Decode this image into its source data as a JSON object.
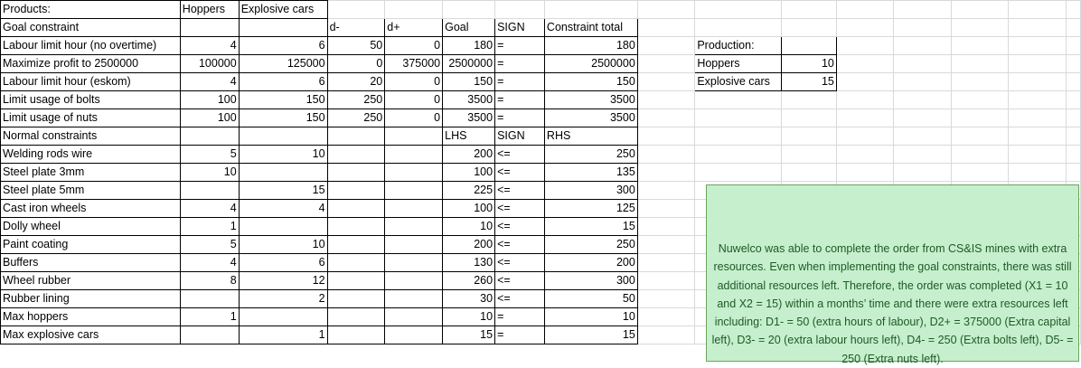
{
  "headers": {
    "products": "Products:",
    "hoppers": "Hoppers",
    "explosive_cars": "Explosive cars",
    "goal_constraint": "Goal constraint",
    "d_minus": "d-",
    "d_plus": "d+",
    "goal": "Goal",
    "sign": "SIGN",
    "constraint_total": "Constraint total",
    "normal_constraints": "Normal constraints",
    "lhs": "LHS",
    "sign2": "SIGN",
    "rhs": "RHS"
  },
  "goal_rows": [
    {
      "label": "Labour limit hour (no overtime)",
      "hoppers": "4",
      "cars": "6",
      "dminus": "50",
      "dplus": "0",
      "goal": "180",
      "sign": "=",
      "total": "180"
    },
    {
      "label": "Maximize profit to 2500000",
      "hoppers": "100000",
      "cars": "125000",
      "dminus": "0",
      "dplus": "375000",
      "goal": "2500000",
      "sign": "=",
      "total": "2500000"
    },
    {
      "label": "Labour limit hour (eskom)",
      "hoppers": "4",
      "cars": "6",
      "dminus": "20",
      "dplus": "0",
      "goal": "150",
      "sign": "=",
      "total": "150"
    },
    {
      "label": "Limit usage of bolts",
      "hoppers": "100",
      "cars": "150",
      "dminus": "250",
      "dplus": "0",
      "goal": "3500",
      "sign": "=",
      "total": "3500"
    },
    {
      "label": "Limit usage of nuts",
      "hoppers": "100",
      "cars": "150",
      "dminus": "250",
      "dplus": "0",
      "goal": "3500",
      "sign": "=",
      "total": "3500"
    }
  ],
  "normal_rows": [
    {
      "label": "Welding rods wire",
      "hoppers": "5",
      "cars": "10",
      "lhs": "200",
      "sign": "<=",
      "rhs": "250"
    },
    {
      "label": "Steel plate 3mm",
      "hoppers": "10",
      "cars": "",
      "lhs": "100",
      "sign": "<=",
      "rhs": "135"
    },
    {
      "label": "Steel plate 5mm",
      "hoppers": "",
      "cars": "15",
      "lhs": "225",
      "sign": "<=",
      "rhs": "300"
    },
    {
      "label": "Cast iron wheels",
      "hoppers": "4",
      "cars": "4",
      "lhs": "100",
      "sign": "<=",
      "rhs": "125"
    },
    {
      "label": "Dolly wheel",
      "hoppers": "1",
      "cars": "",
      "lhs": "10",
      "sign": "<=",
      "rhs": "15"
    },
    {
      "label": "Paint coating",
      "hoppers": "5",
      "cars": "10",
      "lhs": "200",
      "sign": "<=",
      "rhs": "250"
    },
    {
      "label": "Buffers",
      "hoppers": "4",
      "cars": "6",
      "lhs": "130",
      "sign": "<=",
      "rhs": "200"
    },
    {
      "label": "Wheel rubber",
      "hoppers": "8",
      "cars": "12",
      "lhs": "260",
      "sign": "<=",
      "rhs": "300"
    },
    {
      "label": "Rubber lining",
      "hoppers": "",
      "cars": "2",
      "lhs": "30",
      "sign": "<=",
      "rhs": "50"
    },
    {
      "label": "Max hoppers",
      "hoppers": "1",
      "cars": "",
      "lhs": "10",
      "sign": "=",
      "rhs": "10"
    },
    {
      "label": "Max explosive cars",
      "hoppers": "",
      "cars": "1",
      "lhs": "15",
      "sign": "=",
      "rhs": "15"
    }
  ],
  "production": {
    "title": "Production:",
    "rows": [
      {
        "label": "Hoppers",
        "value": "10"
      },
      {
        "label": "Explosive cars",
        "value": "15"
      }
    ]
  },
  "note_text": "Nuwelco was able to complete the order from CS&IS mines with extra resources. Even when implementing the goal constraints, there was still additional resources left. Therefore, the order was completed (X1 = 10 and X2 = 15) within a months’ time and there were extra resources left including: D1- = 50 (extra hours of labour), D2+ = 375000 (Extra capital left), D3- = 20 (extra labour hours left), D4- = 250 (Extra bolts left), D5- = 250 (Extra nuts left).",
  "colors": {
    "note_bg": "#c6efce",
    "note_text": "#1e5b24",
    "gridline": "#d9d9d9"
  }
}
